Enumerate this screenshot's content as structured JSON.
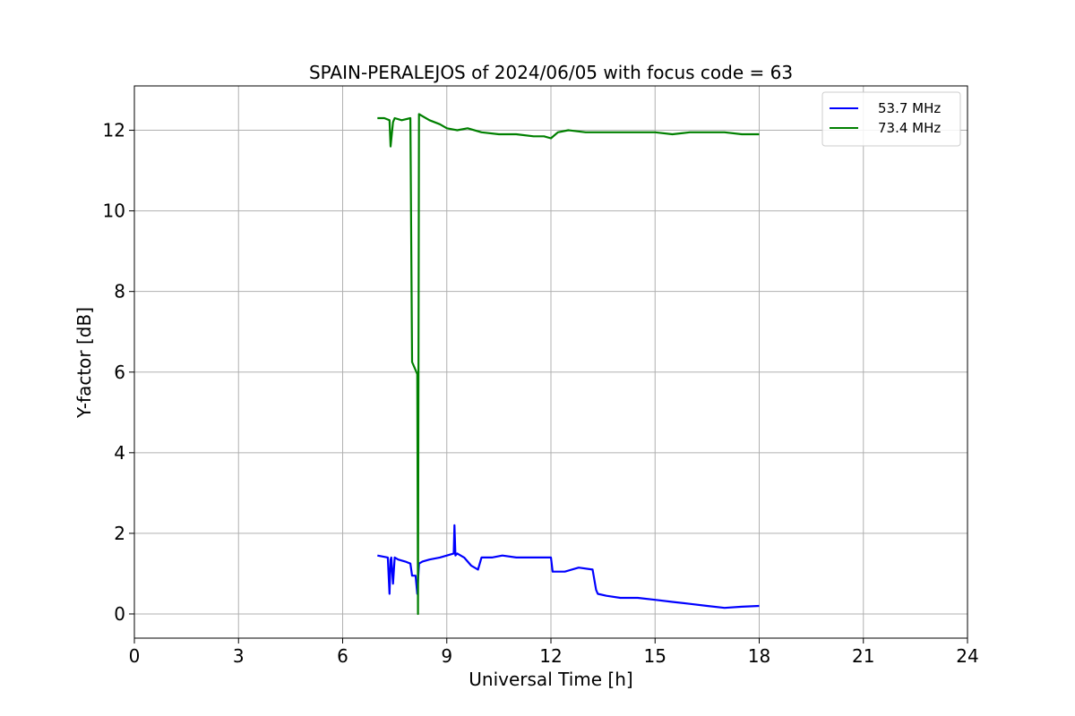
{
  "chart_data": {
    "type": "line",
    "title": "SPAIN-PERALEJOS of 2024/06/05 with focus code = 63",
    "xlabel": "Universal Time [h]",
    "ylabel": "Y-factor [dB]",
    "xlim": [
      0,
      24
    ],
    "ylim": [
      -0.6,
      13.1
    ],
    "xticks": [
      0,
      3,
      6,
      9,
      12,
      15,
      18,
      21,
      24
    ],
    "yticks": [
      0,
      2,
      4,
      6,
      8,
      10,
      12
    ],
    "grid": true,
    "legend_position": "top-right",
    "series": [
      {
        "name": "53.7 MHz",
        "color": "#0000ff",
        "x": [
          7.0,
          7.3,
          7.35,
          7.38,
          7.4,
          7.45,
          7.5,
          7.6,
          7.8,
          7.95,
          8.0,
          8.1,
          8.15,
          8.2,
          8.3,
          8.5,
          8.8,
          9.0,
          9.2,
          9.22,
          9.25,
          9.3,
          9.5,
          9.7,
          9.9,
          10.0,
          10.3,
          10.6,
          11.0,
          11.4,
          11.8,
          12.0,
          12.05,
          12.4,
          12.8,
          13.2,
          13.3,
          13.35,
          13.6,
          14.0,
          14.5,
          15.0,
          15.5,
          16.0,
          16.5,
          17.0,
          17.5,
          18.0
        ],
        "y": [
          1.45,
          1.4,
          0.5,
          1.35,
          1.4,
          0.75,
          1.4,
          1.35,
          1.3,
          1.25,
          0.95,
          0.95,
          0.5,
          1.25,
          1.3,
          1.35,
          1.4,
          1.45,
          1.5,
          2.2,
          1.45,
          1.5,
          1.4,
          1.2,
          1.1,
          1.4,
          1.4,
          1.45,
          1.4,
          1.4,
          1.4,
          1.4,
          1.05,
          1.05,
          1.15,
          1.1,
          0.6,
          0.5,
          0.45,
          0.4,
          0.4,
          0.35,
          0.3,
          0.25,
          0.2,
          0.15,
          0.18,
          0.2
        ]
      },
      {
        "name": "73.4 MHz",
        "color": "#008000",
        "x": [
          7.0,
          7.2,
          7.35,
          7.38,
          7.45,
          7.5,
          7.7,
          7.95,
          8.0,
          8.1,
          8.15,
          8.17,
          8.2,
          8.5,
          8.8,
          9.0,
          9.3,
          9.6,
          10.0,
          10.5,
          11.0,
          11.5,
          11.8,
          12.0,
          12.2,
          12.5,
          13.0,
          13.5,
          14.0,
          14.5,
          15.0,
          15.5,
          16.0,
          16.5,
          17.0,
          17.5,
          18.0
        ],
        "y": [
          12.3,
          12.3,
          12.25,
          11.6,
          12.2,
          12.3,
          12.25,
          12.3,
          6.25,
          6.05,
          5.95,
          0.0,
          12.4,
          12.25,
          12.15,
          12.05,
          12.0,
          12.05,
          11.95,
          11.9,
          11.9,
          11.85,
          11.85,
          11.8,
          11.95,
          12.0,
          11.95,
          11.95,
          11.95,
          11.95,
          11.95,
          11.9,
          11.95,
          11.95,
          11.95,
          11.9,
          11.9
        ]
      }
    ]
  }
}
